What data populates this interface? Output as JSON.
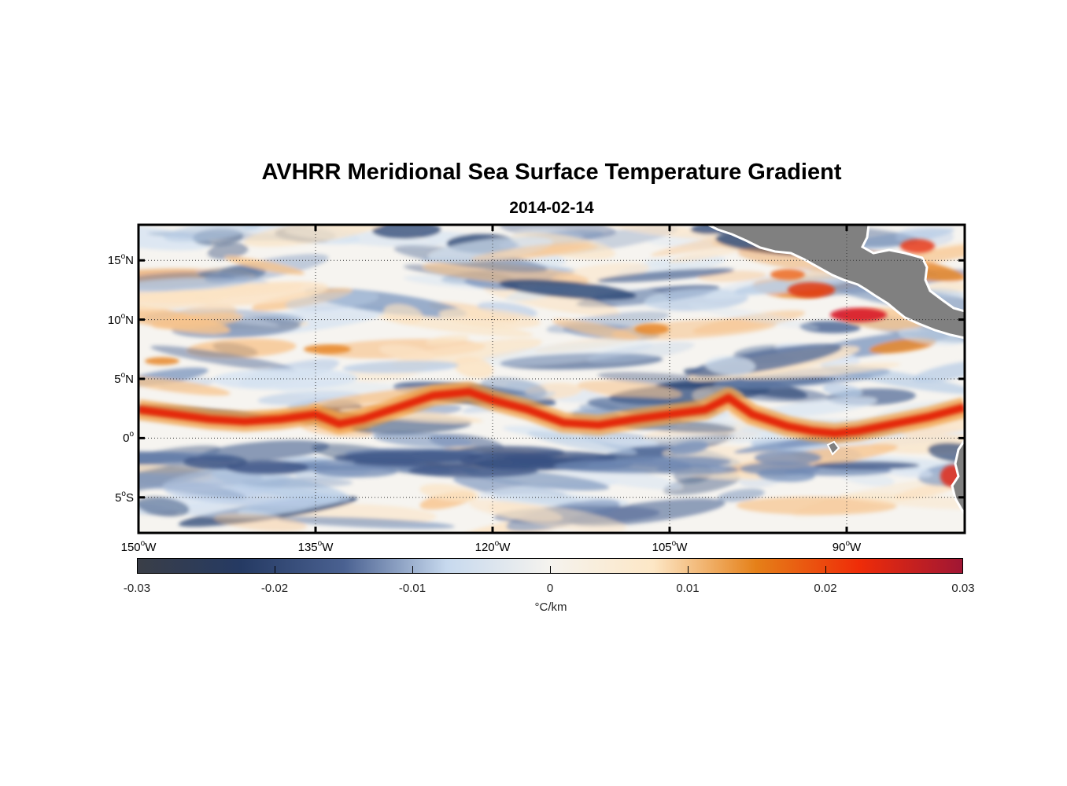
{
  "map": {
    "title": "AVHRR Meridional Sea Surface Temperature Gradient",
    "date": "2014-02-14",
    "lat_labels": [
      {
        "deg": "15",
        "hem": "N",
        "value": 15
      },
      {
        "deg": "10",
        "hem": "N",
        "value": 10
      },
      {
        "deg": "5",
        "hem": "N",
        "value": 5
      },
      {
        "deg": "0",
        "hem": "",
        "value": 0
      },
      {
        "deg": "5",
        "hem": "S",
        "value": -5
      }
    ],
    "lon_labels": [
      {
        "deg": "150",
        "hem": "W",
        "value": -150
      },
      {
        "deg": "135",
        "hem": "W",
        "value": -135
      },
      {
        "deg": "120",
        "hem": "W",
        "value": -120
      },
      {
        "deg": "105",
        "hem": "W",
        "value": -105
      },
      {
        "deg": "90",
        "hem": "W",
        "value": -90
      }
    ],
    "lat_range": [
      -8,
      18
    ],
    "lon_range": [
      -150,
      -80
    ],
    "land_color": "#808080"
  },
  "colorbar": {
    "ticks": [
      "-0.03",
      "-0.02",
      "-0.01",
      "0",
      "0.01",
      "0.02",
      "0.03"
    ],
    "range": [
      -0.03,
      0.03
    ],
    "unit": "°C/km",
    "colors": [
      "#3a3e47",
      "#253a63",
      "#4a6191",
      "#c7d9ee",
      "#f5f3ee",
      "#fde7c6",
      "#e58018",
      "#ef2c08",
      "#a01634"
    ]
  }
}
